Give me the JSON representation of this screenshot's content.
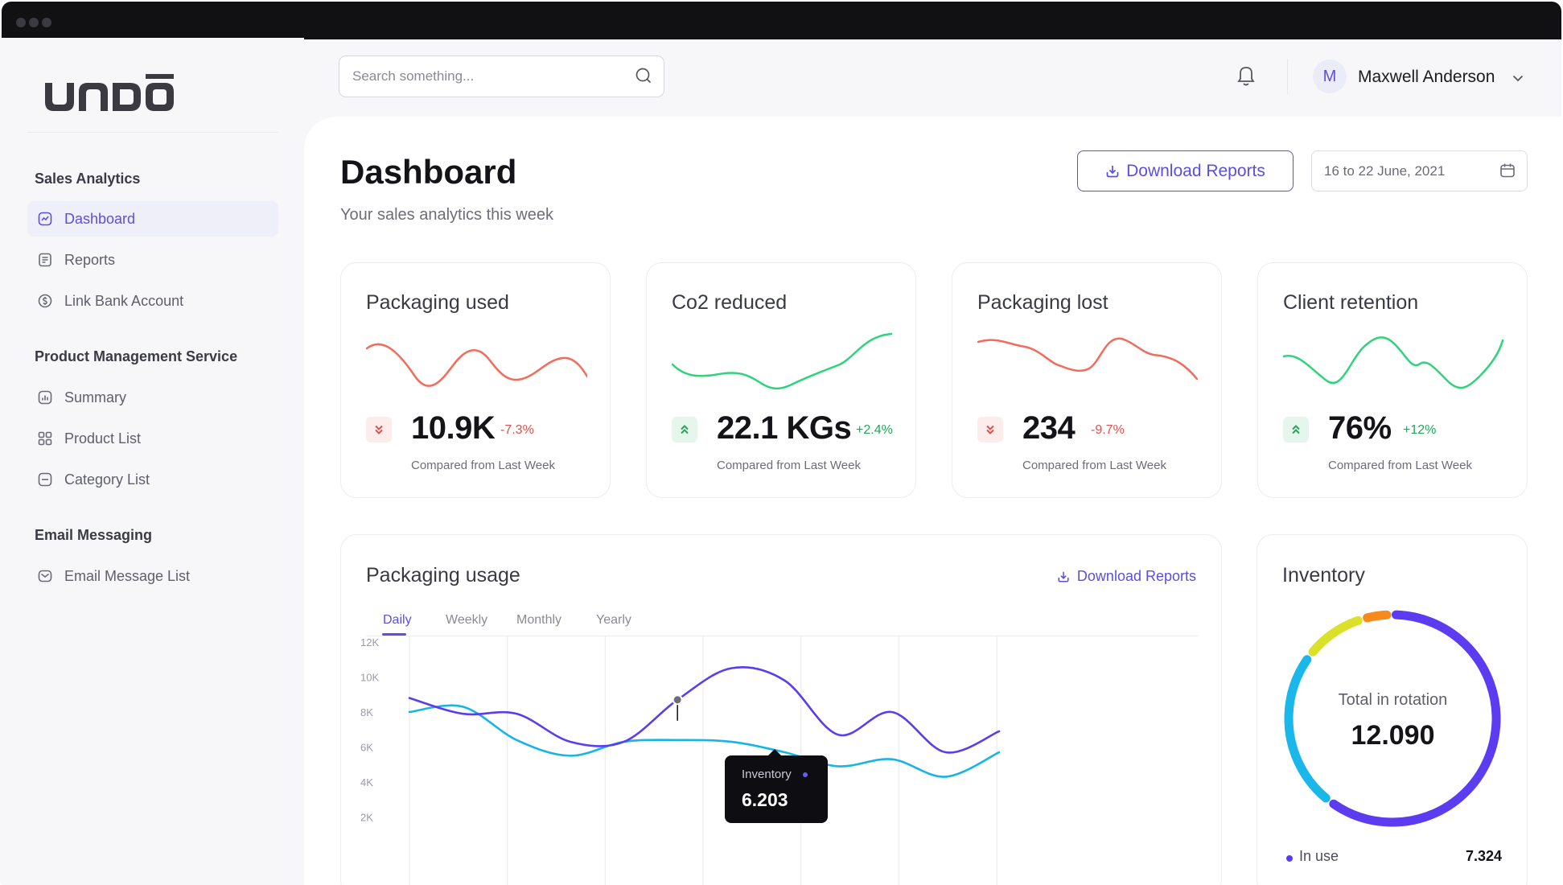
{
  "brand": {
    "logo_text": "UNDŌ"
  },
  "sidebar": {
    "sections": [
      {
        "title": "Sales Analytics"
      },
      {
        "title": "Product Management Service"
      },
      {
        "title": "Email Messaging"
      }
    ],
    "items": [
      {
        "label": "Dashboard",
        "icon": "chart-line-icon",
        "active": true
      },
      {
        "label": "Reports",
        "icon": "document-icon"
      },
      {
        "label": "Link Bank Account",
        "icon": "dollar-circle-icon"
      },
      {
        "label": "Summary",
        "icon": "bar-chart-icon"
      },
      {
        "label": "Product List",
        "icon": "grid-icon"
      },
      {
        "label": "Category List",
        "icon": "folder-icon"
      },
      {
        "label": "Email Message List",
        "icon": "mail-icon"
      }
    ]
  },
  "header": {
    "search_placeholder": "Search something...",
    "user": {
      "initial": "M",
      "name": "Maxwell Anderson"
    }
  },
  "page": {
    "title": "Dashboard",
    "subtitle": "Your sales analytics this week",
    "download_label": "Download Reports",
    "date_range": "16 to 22 June, 2021"
  },
  "kpis": [
    {
      "title": "Packaging used",
      "value": "10.9K",
      "delta": "-7.3%",
      "trend": "down",
      "compare": "Compared from Last Week",
      "color": "#f26b5b"
    },
    {
      "title": "Co2 reduced",
      "value": "22.1 KGs",
      "delta": "+2.4%",
      "trend": "up",
      "compare": "Compared from Last Week",
      "color": "#2ed47a"
    },
    {
      "title": "Packaging lost",
      "value": "234",
      "delta": "-9.7%",
      "trend": "down",
      "compare": "Compared from Last Week",
      "color": "#f26b5b"
    },
    {
      "title": "Client retention",
      "value": "76%",
      "delta": "+12%",
      "trend": "up",
      "compare": "Compared from Last Week",
      "color": "#2ed47a"
    }
  ],
  "usage": {
    "title": "Packaging usage",
    "download_label": "Download Reports",
    "tabs": [
      "Daily",
      "Weekly",
      "Monthly",
      "Yearly"
    ],
    "active_tab": "Daily",
    "tooltip": {
      "label": "Inventory",
      "value": "6.203"
    }
  },
  "chart_data": {
    "type": "line",
    "ylim": [
      2000,
      12000
    ],
    "y_ticks": [
      "12K",
      "10K",
      "8K",
      "6K",
      "4K",
      "2K"
    ],
    "series": [
      {
        "color": "#5b3cf0",
        "values": [
          8800,
          7900,
          7900,
          6300,
          6300,
          8700,
          10500,
          9800,
          6700,
          8000,
          5700,
          6900
        ]
      },
      {
        "color": "#18b4e8",
        "values": [
          8000,
          8300,
          6400,
          5500,
          6300,
          6400,
          6300,
          5700,
          4900,
          5300,
          4300,
          5700
        ]
      }
    ]
  },
  "inventory": {
    "title": "Inventory",
    "center_label": "Total in rotation",
    "center_value": "12.090",
    "legend": [
      {
        "label": "In use",
        "value": "7.324",
        "color": "#5b3cf0"
      }
    ],
    "segments": [
      {
        "color": "#5b3cf0",
        "share": 0.605
      },
      {
        "color": "#1ab8ea",
        "share": 0.25
      },
      {
        "color": "#dbe02a",
        "share": 0.1
      },
      {
        "color": "#f78a1d",
        "share": 0.045
      }
    ]
  }
}
